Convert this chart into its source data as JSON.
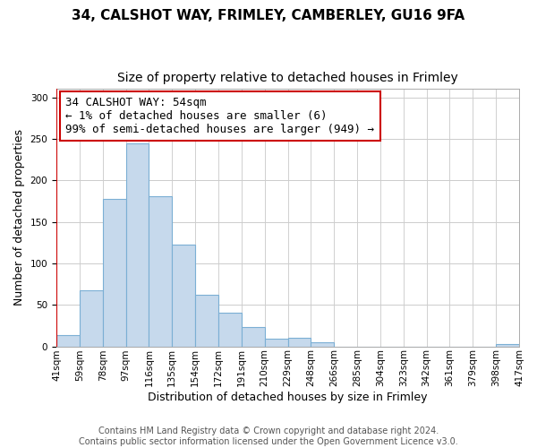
{
  "title": "34, CALSHOT WAY, FRIMLEY, CAMBERLEY, GU16 9FA",
  "subtitle": "Size of property relative to detached houses in Frimley",
  "xlabel": "Distribution of detached houses by size in Frimley",
  "ylabel": "Number of detached properties",
  "bar_values": [
    14,
    68,
    178,
    245,
    181,
    123,
    62,
    40,
    23,
    9,
    10,
    5,
    0,
    0,
    0,
    0,
    0,
    0,
    0,
    3
  ],
  "bin_labels": [
    "41sqm",
    "59sqm",
    "78sqm",
    "97sqm",
    "116sqm",
    "135sqm",
    "154sqm",
    "172sqm",
    "191sqm",
    "210sqm",
    "229sqm",
    "248sqm",
    "266sqm",
    "285sqm",
    "304sqm",
    "323sqm",
    "342sqm",
    "361sqm",
    "379sqm",
    "398sqm",
    "417sqm"
  ],
  "bar_color": "#c6d9ec",
  "bar_edge_color": "#7bafd4",
  "annotation_box_text": "34 CALSHOT WAY: 54sqm\n← 1% of detached houses are smaller (6)\n99% of semi-detached houses are larger (949) →",
  "annotation_box_color": "#ffffff",
  "annotation_box_edge_color": "#cc0000",
  "marker_line_color": "#cc0000",
  "ylim": [
    0,
    310
  ],
  "yticks": [
    0,
    50,
    100,
    150,
    200,
    250,
    300
  ],
  "footer_line1": "Contains HM Land Registry data © Crown copyright and database right 2024.",
  "footer_line2": "Contains public sector information licensed under the Open Government Licence v3.0.",
  "title_fontsize": 11,
  "subtitle_fontsize": 10,
  "xlabel_fontsize": 9,
  "ylabel_fontsize": 9,
  "tick_fontsize": 7.5,
  "footer_fontsize": 7,
  "annotation_fontsize": 9
}
